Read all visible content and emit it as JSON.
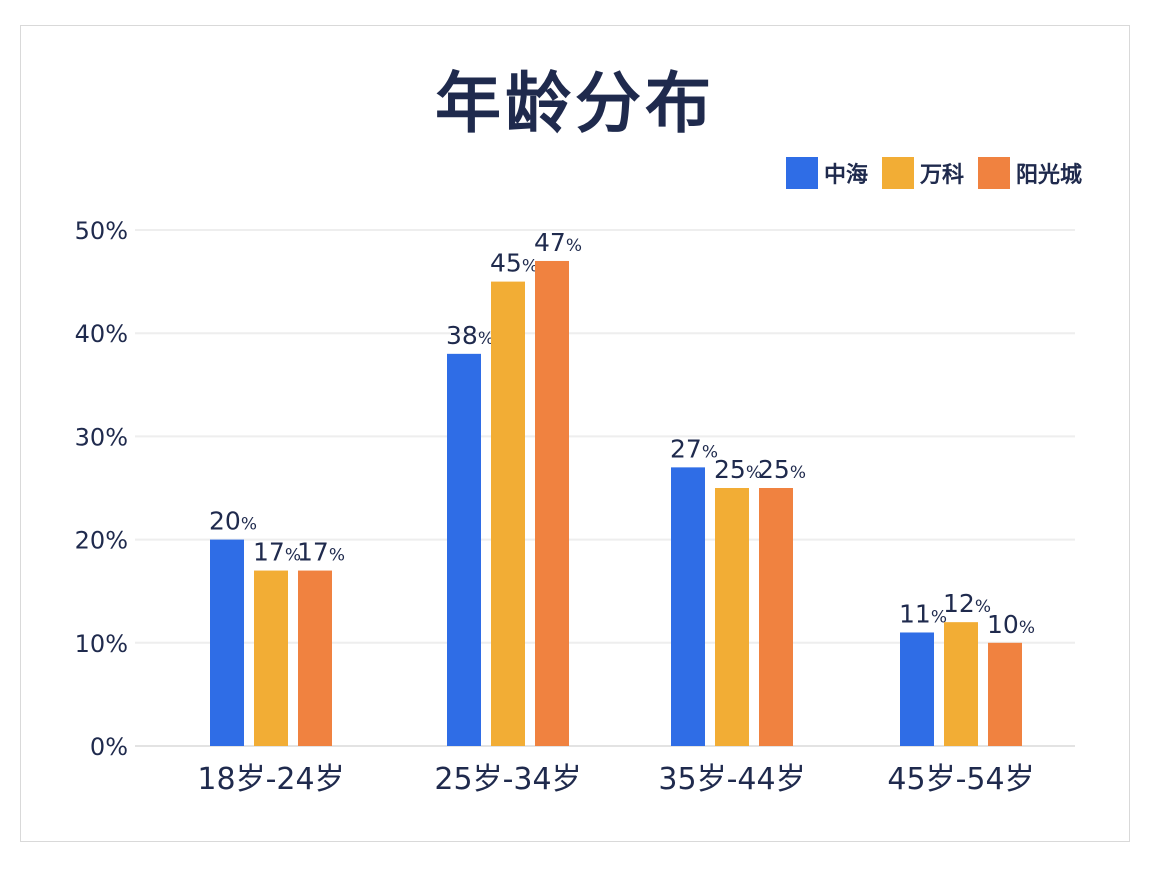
{
  "title": "年龄分布",
  "legend": [
    {
      "label": "中海",
      "color": "#2f6de6"
    },
    {
      "label": "万科",
      "color": "#f2ad35"
    },
    {
      "label": "阳光城",
      "color": "#f08240"
    }
  ],
  "chart_data": {
    "type": "bar",
    "title": "年龄分布",
    "categories": [
      "18岁-24岁",
      "25岁-34岁",
      "35岁-44岁",
      "45岁-54岁"
    ],
    "series": [
      {
        "name": "中海",
        "color": "#2f6de6",
        "values": [
          20,
          38,
          27,
          11
        ]
      },
      {
        "name": "万科",
        "color": "#f2ad35",
        "values": [
          17,
          45,
          25,
          12
        ]
      },
      {
        "name": "阳光城",
        "color": "#f08240",
        "values": [
          17,
          47,
          25,
          10
        ]
      }
    ],
    "y_ticks": [
      "0%",
      "10%",
      "20%",
      "30%",
      "40%",
      "50%"
    ],
    "ylim": [
      0,
      50
    ],
    "value_suffix": "%",
    "grid": true,
    "legend_position": "top-right"
  }
}
